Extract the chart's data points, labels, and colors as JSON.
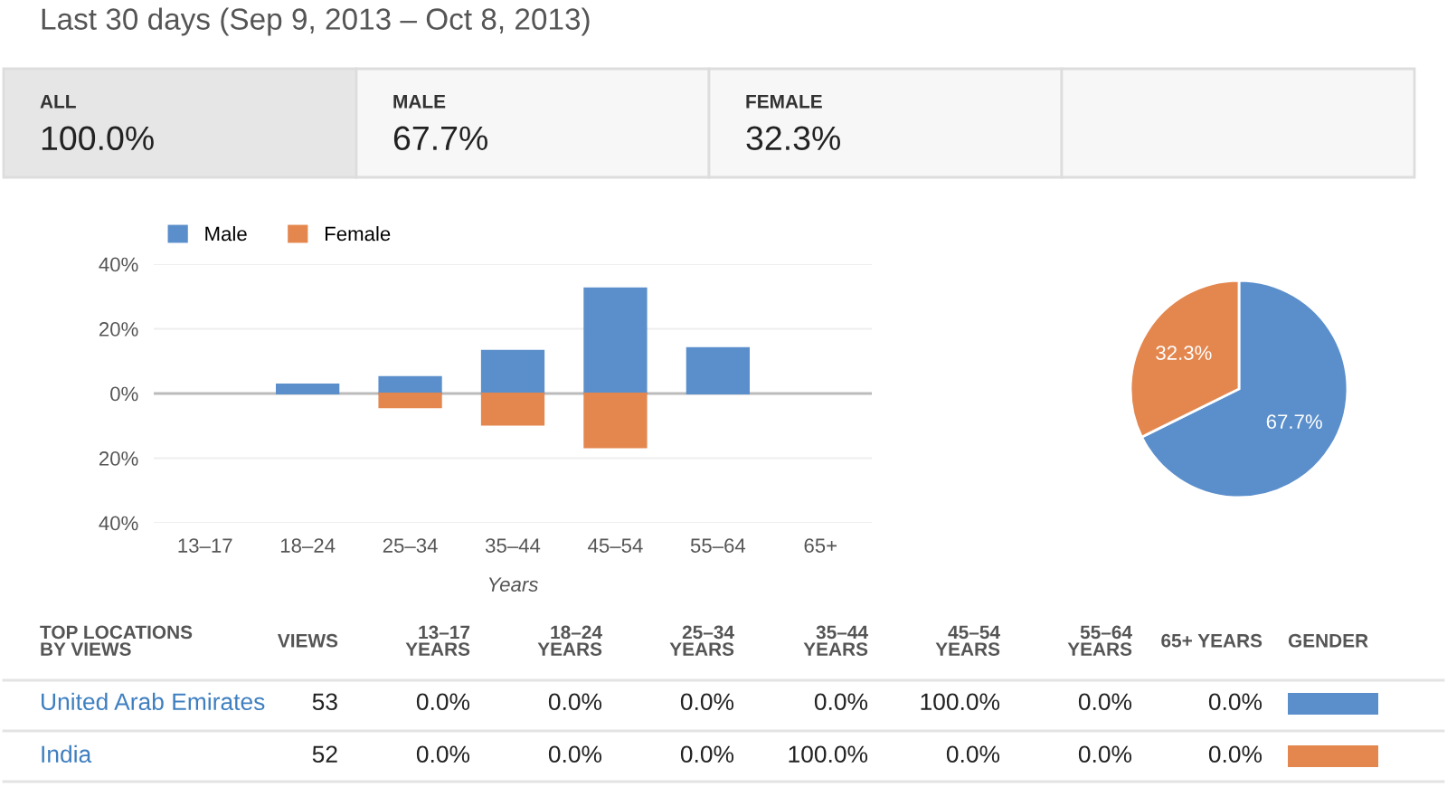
{
  "chart_data": [
    {
      "type": "other",
      "title": "Last 30 days (Sep 9, 2013 – Oct 8, 2013)",
      "categories": [
        "ALL",
        "MALE",
        "FEMALE"
      ],
      "values": [
        100.0,
        67.7,
        32.3
      ],
      "value_labels": [
        "100.0%",
        "67.7%",
        "32.3%"
      ]
    },
    {
      "type": "bar",
      "categories": [
        "13–17",
        "18–24",
        "25–34",
        "35–44",
        "45–54",
        "55–64",
        "65+"
      ],
      "xlabel": "Years",
      "series": [
        {
          "name": "Male",
          "color": "#5b8fcb",
          "values": [
            null,
            2.8,
            5.1,
            13.2,
            32.5,
            14.0,
            null
          ]
        },
        {
          "name": "Female",
          "color": "#e4874f",
          "values": [
            null,
            null,
            -4.2,
            -9.6,
            -16.6,
            null,
            null
          ]
        }
      ],
      "ylim": [
        -40,
        40
      ],
      "yticks": [
        {
          "value": -40,
          "label": "40%"
        },
        {
          "value": -20,
          "label": "20%"
        },
        {
          "value": 0,
          "label": "0%"
        },
        {
          "value": 20,
          "label": "20%"
        },
        {
          "value": 40,
          "label": "40%"
        }
      ],
      "grid": "y",
      "legend": "top left"
    },
    {
      "type": "pie",
      "categories": [
        null,
        null
      ],
      "values": [
        67.7,
        32.3
      ],
      "colors": [
        "#5b8fcb",
        "#e4874f"
      ],
      "value_labels": [
        "67.7%",
        "32.3%"
      ]
    },
    {
      "type": "other",
      "categories": [
        "TOP LOCATIONS\nBY VIEWS",
        "VIEWS",
        "13–17\nYEARS",
        "18–24\nYEARS",
        "25–34\nYEARS",
        "35–44\nYEARS",
        "45–54\nYEARS",
        "55–64\nYEARS",
        "65+ YEARS",
        "GENDER"
      ],
      "y_categories": [
        "United Arab Emirates",
        "India"
      ],
      "cell_labels": [
        [
          "53",
          "0.0%",
          "0.0%",
          "0.0%",
          "0.0%",
          "100.0%",
          "0.0%",
          "0.0%"
        ],
        [
          "52",
          "0.0%",
          "0.0%",
          "0.0%",
          "100.0%",
          "0.0%",
          "0.0%",
          "0.0%"
        ]
      ],
      "colors": [
        "#5b8fcb",
        "#e4874f"
      ]
    }
  ]
}
